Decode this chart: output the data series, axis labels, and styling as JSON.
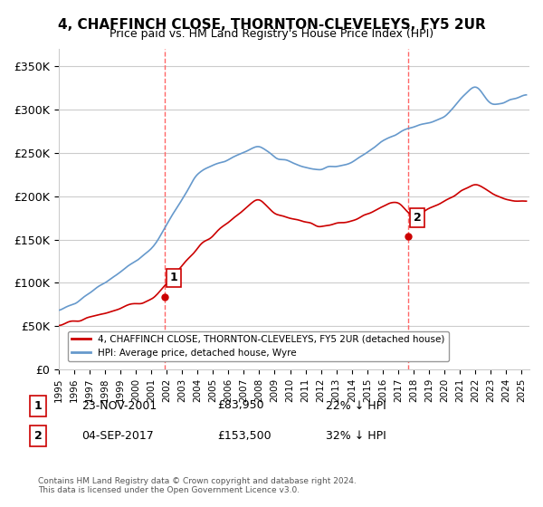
{
  "title": "4, CHAFFINCH CLOSE, THORNTON-CLEVELEYS, FY5 2UR",
  "subtitle": "Price paid vs. HM Land Registry's House Price Index (HPI)",
  "legend_label_red": "4, CHAFFINCH CLOSE, THORNTON-CLEVELEYS, FY5 2UR (detached house)",
  "legend_label_blue": "HPI: Average price, detached house, Wyre",
  "footer": "Contains HM Land Registry data © Crown copyright and database right 2024.\nThis data is licensed under the Open Government Licence v3.0.",
  "sale1_label": "1",
  "sale1_date": "23-NOV-2001",
  "sale1_price": "£83,950",
  "sale1_hpi": "22% ↓ HPI",
  "sale1_year": 2001.9,
  "sale2_label": "2",
  "sale2_date": "04-SEP-2017",
  "sale2_price": "£153,500",
  "sale2_hpi": "32% ↓ HPI",
  "sale2_year": 2017.67,
  "ylim": [
    0,
    370000
  ],
  "xlim_start": 1995.0,
  "xlim_end": 2025.5,
  "red_color": "#cc0000",
  "blue_color": "#6699cc",
  "vline_color": "#ff6666",
  "grid_color": "#cccccc",
  "bg_color": "#ffffff",
  "plot_bg": "#ffffff"
}
